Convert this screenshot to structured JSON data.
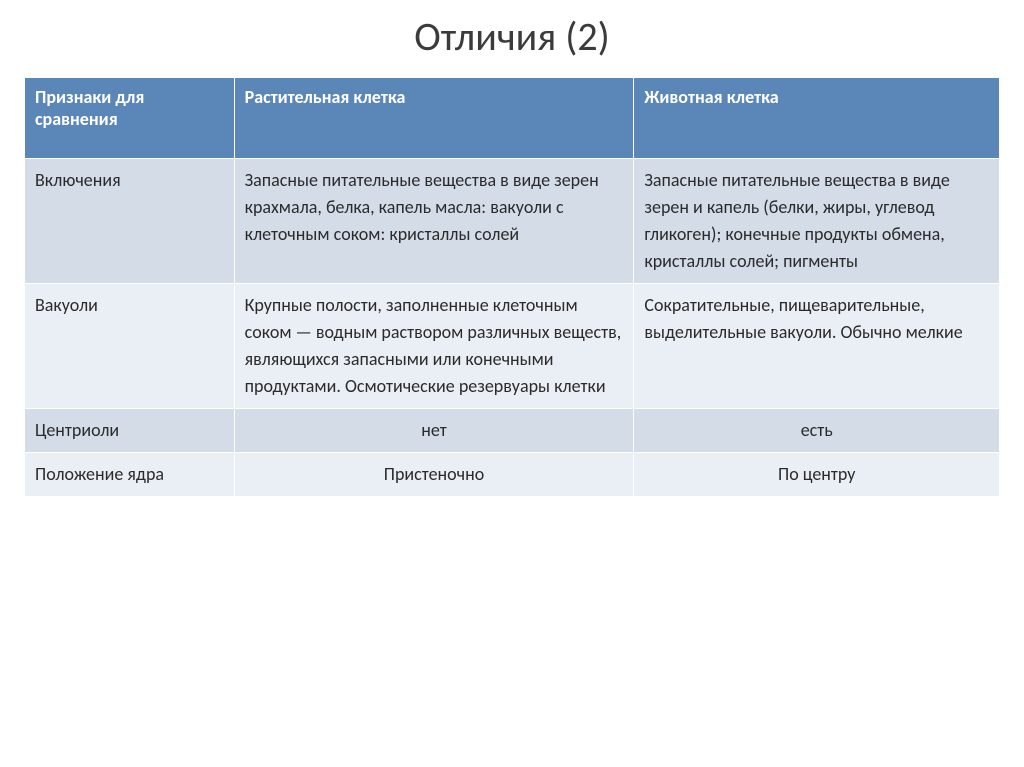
{
  "title": "Отличия (2)",
  "table": {
    "header_bg": "#5b86b8",
    "row_bg_odd": "#d4dce7",
    "row_bg_even": "#eaeef5",
    "columns": [
      {
        "label": "Признаки для сравнения",
        "width_class": "col-0"
      },
      {
        "label": "Растительная клетка",
        "width_class": "col-1"
      },
      {
        "label": "Животная клетка",
        "width_class": "col-2"
      }
    ],
    "rows": [
      {
        "bg_key": "odd",
        "cells": [
          {
            "text": "Включения",
            "align": "left"
          },
          {
            "text": "Запасные питательные вещества в виде зерен крахмала, белка, капель масла: вакуоли с клеточным соком: кристаллы солей",
            "align": "left"
          },
          {
            "text": "Запасные питательные вещества в виде зерен и капель (белки, жиры, углевод гликоген); конечные продукты обмена, кристаллы солей; пигменты",
            "align": "left"
          }
        ]
      },
      {
        "bg_key": "even",
        "cells": [
          {
            "text": "Вакуоли",
            "align": "left"
          },
          {
            "text": "Крупные полости, заполненные клеточным соком — водным раствором различных веществ, являющихся запасными или конечными продуктами. Осмотические резервуары клетки",
            "align": "left"
          },
          {
            "text": "Сократительные, пищеварительные, выделительные вакуоли. Обычно мелкие",
            "align": "left"
          }
        ]
      },
      {
        "bg_key": "odd",
        "cells": [
          {
            "text": "Центриоли",
            "align": "left"
          },
          {
            "text": "нет",
            "align": "center"
          },
          {
            "text": "есть",
            "align": "center"
          }
        ]
      },
      {
        "bg_key": "even",
        "cells": [
          {
            "text": "Положение ядра",
            "align": "left"
          },
          {
            "text": "Пристеночно",
            "align": "center"
          },
          {
            "text": "По центру",
            "align": "center"
          }
        ]
      }
    ]
  }
}
